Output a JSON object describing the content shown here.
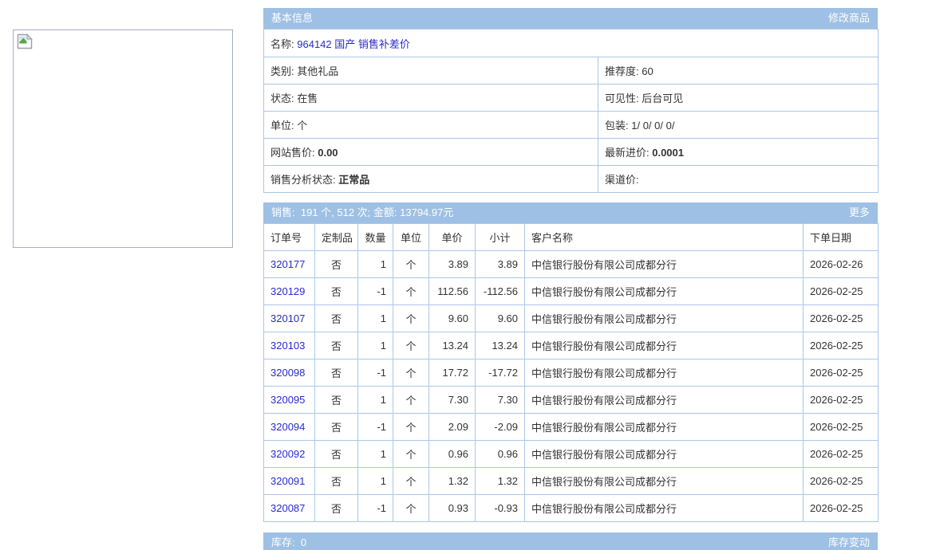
{
  "colors": {
    "header_bar_bg": "#9ec0e4",
    "link_blue": "#2a2ad0",
    "table_border": "#aac7e8"
  },
  "product_image": {
    "icon": "broken-image-icon"
  },
  "basic_info": {
    "title": "基本信息",
    "edit_link": "修改商品",
    "name_label": "名称:",
    "name_value": "964142 国产 销售补差价",
    "rows": [
      {
        "left_label": "类别:",
        "left_value": "其他礼品",
        "left_bold": false,
        "right_label": "推荐度:",
        "right_value": "60",
        "right_bold": false
      },
      {
        "left_label": "状态:",
        "left_value": "在售",
        "left_bold": false,
        "right_label": "可见性:",
        "right_value": "后台可见",
        "right_bold": false
      },
      {
        "left_label": "单位:",
        "left_value": "个",
        "left_bold": false,
        "right_label": "包装:",
        "right_value": "1/ 0/ 0/ 0/",
        "right_bold": false
      },
      {
        "left_label": "网站售价:",
        "left_value": "0.00",
        "left_bold": true,
        "right_label": "最新进价:",
        "right_value": "0.0001",
        "right_bold": true
      },
      {
        "left_label": "销售分析状态:",
        "left_value": "正常品",
        "left_bold": true,
        "right_label": "渠道价:",
        "right_value": "",
        "right_bold": false
      }
    ]
  },
  "sales": {
    "summary_label": "销售:",
    "summary_value": "191 个, 512 次; 金额: 13794.97元",
    "more_link": "更多",
    "columns": [
      "订单号",
      "定制品",
      "数量",
      "单位",
      "单价",
      "小计",
      "客户名称",
      "下单日期"
    ],
    "rows": [
      {
        "order_no": "320177",
        "custom": "否",
        "qty": "1",
        "unit": "个",
        "price": "3.89",
        "subtotal": "3.89",
        "customer": "中信银行股份有限公司成都分行",
        "date": "2026-02-26"
      },
      {
        "order_no": "320129",
        "custom": "否",
        "qty": "-1",
        "unit": "个",
        "price": "112.56",
        "subtotal": "-112.56",
        "customer": "中信银行股份有限公司成都分行",
        "date": "2026-02-25"
      },
      {
        "order_no": "320107",
        "custom": "否",
        "qty": "1",
        "unit": "个",
        "price": "9.60",
        "subtotal": "9.60",
        "customer": "中信银行股份有限公司成都分行",
        "date": "2026-02-25"
      },
      {
        "order_no": "320103",
        "custom": "否",
        "qty": "1",
        "unit": "个",
        "price": "13.24",
        "subtotal": "13.24",
        "customer": "中信银行股份有限公司成都分行",
        "date": "2026-02-25"
      },
      {
        "order_no": "320098",
        "custom": "否",
        "qty": "-1",
        "unit": "个",
        "price": "17.72",
        "subtotal": "-17.72",
        "customer": "中信银行股份有限公司成都分行",
        "date": "2026-02-25"
      },
      {
        "order_no": "320095",
        "custom": "否",
        "qty": "1",
        "unit": "个",
        "price": "7.30",
        "subtotal": "7.30",
        "customer": "中信银行股份有限公司成都分行",
        "date": "2026-02-25"
      },
      {
        "order_no": "320094",
        "custom": "否",
        "qty": "-1",
        "unit": "个",
        "price": "2.09",
        "subtotal": "-2.09",
        "customer": "中信银行股份有限公司成都分行",
        "date": "2026-02-25"
      },
      {
        "order_no": "320092",
        "custom": "否",
        "qty": "1",
        "unit": "个",
        "price": "0.96",
        "subtotal": "0.96",
        "customer": "中信银行股份有限公司成都分行",
        "date": "2026-02-25"
      },
      {
        "order_no": "320091",
        "custom": "否",
        "qty": "1",
        "unit": "个",
        "price": "1.32",
        "subtotal": "1.32",
        "customer": "中信银行股份有限公司成都分行",
        "date": "2026-02-25"
      },
      {
        "order_no": "320087",
        "custom": "否",
        "qty": "-1",
        "unit": "个",
        "price": "0.93",
        "subtotal": "-0.93",
        "customer": "中信银行股份有限公司成都分行",
        "date": "2026-02-25"
      }
    ]
  },
  "inventory": {
    "label": "库存:",
    "value": "0",
    "change_link": "库存变动"
  }
}
